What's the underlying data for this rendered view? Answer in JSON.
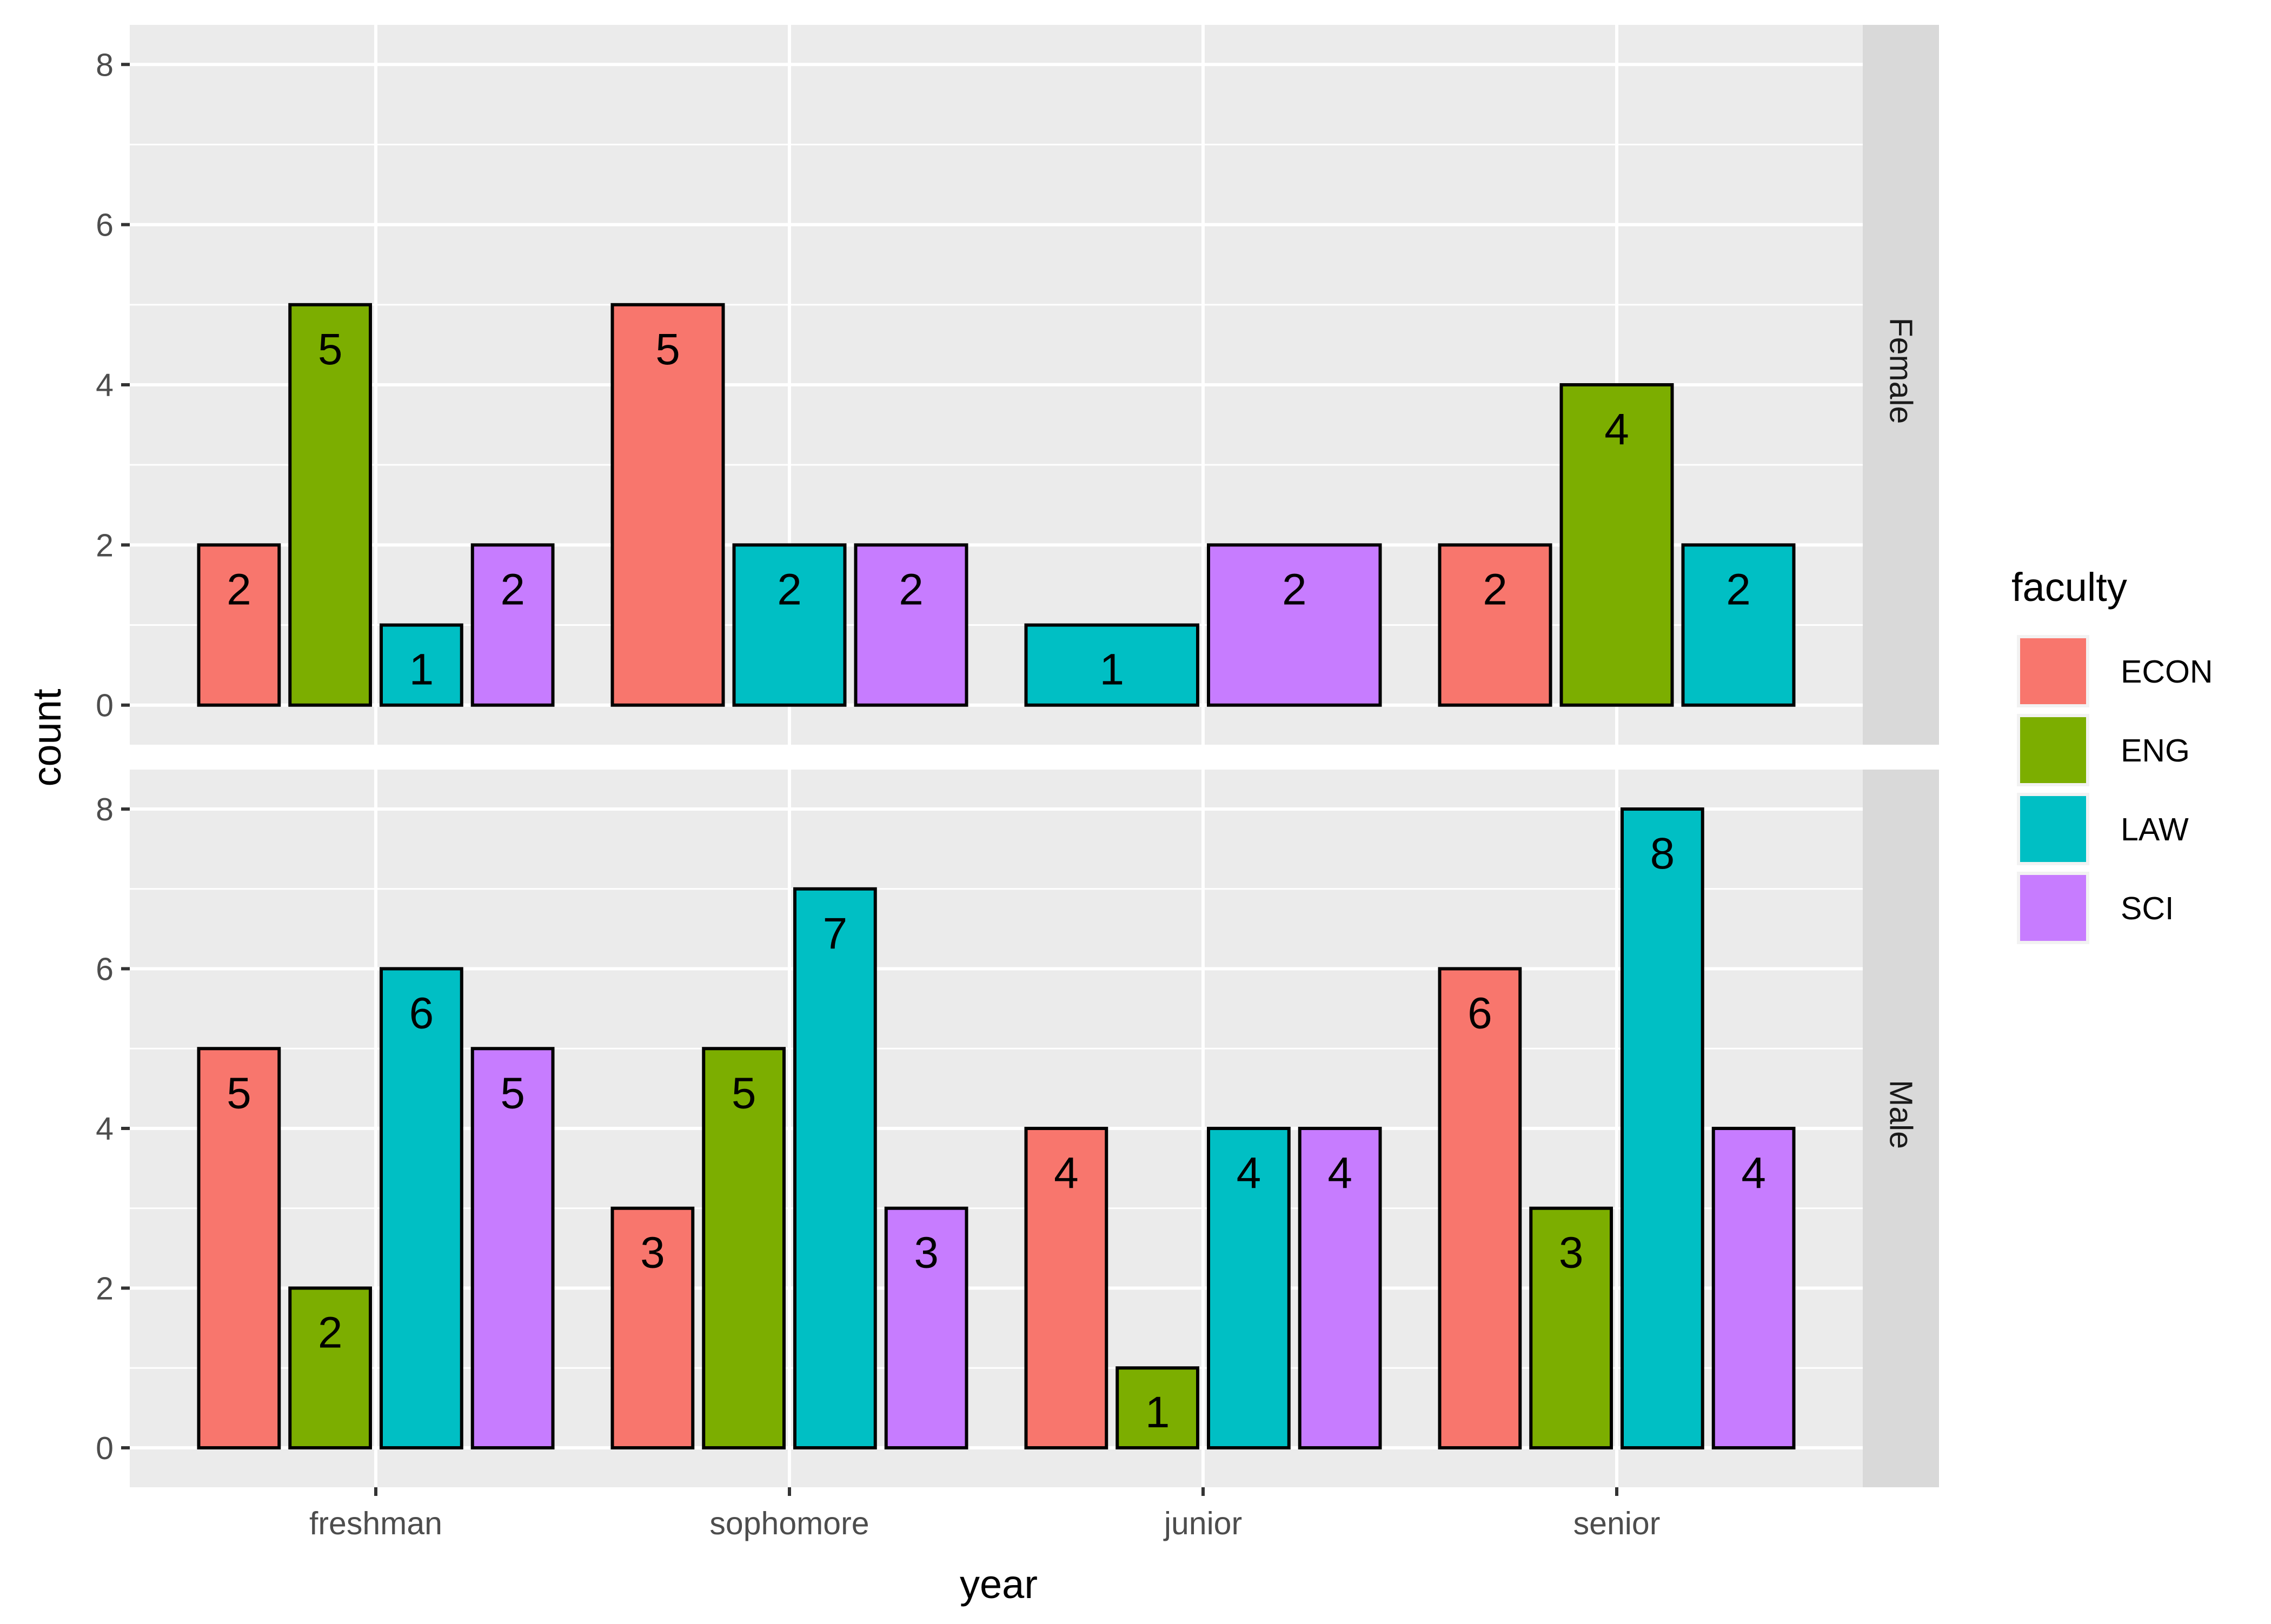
{
  "chart_data": {
    "type": "bar",
    "subtype": "faceted-dodged",
    "xlabel": "year",
    "ylabel": "count",
    "ylim": [
      0,
      8
    ],
    "yticks": [
      0,
      2,
      4,
      6,
      8
    ],
    "categories": [
      "freshman",
      "sophomore",
      "junior",
      "senior"
    ],
    "legend": {
      "title": "faculty",
      "position": "right",
      "items": [
        {
          "name": "ECON",
          "color": "#F8766D"
        },
        {
          "name": "ENG",
          "color": "#7CAE00"
        },
        {
          "name": "LAW",
          "color": "#00BFC4"
        },
        {
          "name": "SCI",
          "color": "#C77CFF"
        }
      ]
    },
    "panels": [
      {
        "label": "Female",
        "groups": [
          {
            "category": "freshman",
            "bars": [
              {
                "faculty": "ECON",
                "value": 2
              },
              {
                "faculty": "ENG",
                "value": 5
              },
              {
                "faculty": "LAW",
                "value": 1
              },
              {
                "faculty": "SCI",
                "value": 2
              }
            ]
          },
          {
            "category": "sophomore",
            "bars": [
              {
                "faculty": "ECON",
                "value": 5
              },
              {
                "faculty": "LAW",
                "value": 2
              },
              {
                "faculty": "SCI",
                "value": 2
              }
            ]
          },
          {
            "category": "junior",
            "bars": [
              {
                "faculty": "LAW",
                "value": 1
              },
              {
                "faculty": "SCI",
                "value": 2
              }
            ]
          },
          {
            "category": "senior",
            "bars": [
              {
                "faculty": "ECON",
                "value": 2
              },
              {
                "faculty": "ENG",
                "value": 4
              },
              {
                "faculty": "LAW",
                "value": 2
              }
            ]
          }
        ]
      },
      {
        "label": "Male",
        "groups": [
          {
            "category": "freshman",
            "bars": [
              {
                "faculty": "ECON",
                "value": 5
              },
              {
                "faculty": "ENG",
                "value": 2
              },
              {
                "faculty": "LAW",
                "value": 6
              },
              {
                "faculty": "SCI",
                "value": 5
              }
            ]
          },
          {
            "category": "sophomore",
            "bars": [
              {
                "faculty": "ECON",
                "value": 3
              },
              {
                "faculty": "ENG",
                "value": 5
              },
              {
                "faculty": "LAW",
                "value": 7
              },
              {
                "faculty": "SCI",
                "value": 3
              }
            ]
          },
          {
            "category": "junior",
            "bars": [
              {
                "faculty": "ECON",
                "value": 4
              },
              {
                "faculty": "ENG",
                "value": 1
              },
              {
                "faculty": "LAW",
                "value": 4
              },
              {
                "faculty": "SCI",
                "value": 4
              }
            ]
          },
          {
            "category": "senior",
            "bars": [
              {
                "faculty": "ECON",
                "value": 6
              },
              {
                "faculty": "ENG",
                "value": 3
              },
              {
                "faculty": "LAW",
                "value": 8
              },
              {
                "faculty": "SCI",
                "value": 4
              }
            ]
          }
        ]
      }
    ]
  }
}
